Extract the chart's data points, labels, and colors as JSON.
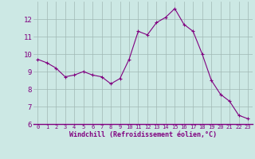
{
  "x": [
    0,
    1,
    2,
    3,
    4,
    5,
    6,
    7,
    8,
    9,
    10,
    11,
    12,
    13,
    14,
    15,
    16,
    17,
    18,
    19,
    20,
    21,
    22,
    23
  ],
  "y": [
    9.7,
    9.5,
    9.2,
    8.7,
    8.8,
    9.0,
    8.8,
    8.7,
    8.3,
    8.6,
    9.7,
    11.3,
    11.1,
    11.8,
    12.1,
    12.6,
    11.7,
    11.3,
    10.0,
    8.5,
    7.7,
    7.3,
    6.5,
    6.3
  ],
  "line_color": "#800080",
  "marker_color": "#800080",
  "bg_color": "#cce8e4",
  "grid_color": "#a0b8b4",
  "xlabel": "Windchill (Refroidissement éolien,°C)",
  "xlim": [
    -0.5,
    23.5
  ],
  "ylim": [
    6,
    13
  ],
  "yticks": [
    6,
    7,
    8,
    9,
    10,
    11,
    12
  ],
  "xticks": [
    0,
    1,
    2,
    3,
    4,
    5,
    6,
    7,
    8,
    9,
    10,
    11,
    12,
    13,
    14,
    15,
    16,
    17,
    18,
    19,
    20,
    21,
    22,
    23
  ],
  "xlabel_color": "#800080",
  "tick_color": "#800080"
}
